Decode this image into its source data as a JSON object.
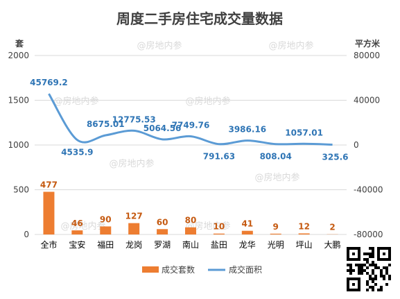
{
  "watermark": "@房地内参",
  "chart_data": {
    "type": "bar",
    "title": "周度二手房住宅成交量数据",
    "categories": [
      "全市",
      "宝安",
      "福田",
      "龙岗",
      "罗湖",
      "南山",
      "盐田",
      "龙华",
      "光明",
      "坪山",
      "大鹏"
    ],
    "left_axis": {
      "unit": "套",
      "ticks": [
        "0",
        "500",
        "1000",
        "1500",
        "2000"
      ],
      "ylim": [
        0,
        2000
      ]
    },
    "right_axis": {
      "unit": "平方米",
      "ticks": [
        "-80000",
        "-40000",
        "0",
        "40000",
        "80000"
      ],
      "ylim": [
        -80000,
        80000
      ]
    },
    "grid": true,
    "legend_position": "bottom",
    "series": [
      {
        "name": "成交套数",
        "type": "bar",
        "axis": "left",
        "color": "#ed7d31",
        "values": [
          477,
          46,
          90,
          127,
          60,
          80,
          10,
          41,
          9,
          12,
          2
        ],
        "labels": [
          "477",
          "46",
          "90",
          "127",
          "60",
          "80",
          "10",
          "41",
          "9",
          "12",
          "2"
        ]
      },
      {
        "name": "成交面积",
        "type": "line",
        "axis": "right",
        "color": "#5b9bd5",
        "values": [
          45769.2,
          4535.9,
          8675.01,
          12775.53,
          5064.56,
          7749.76,
          791.63,
          3986.16,
          808.04,
          1057.01,
          325.6
        ],
        "labels": [
          "45769.2",
          "4535.9",
          "8675.01",
          "12775.53",
          "5064.56",
          "7749.76",
          "791.63",
          "3986.16",
          "808.04",
          "1057.01",
          "325.6"
        ]
      }
    ]
  }
}
